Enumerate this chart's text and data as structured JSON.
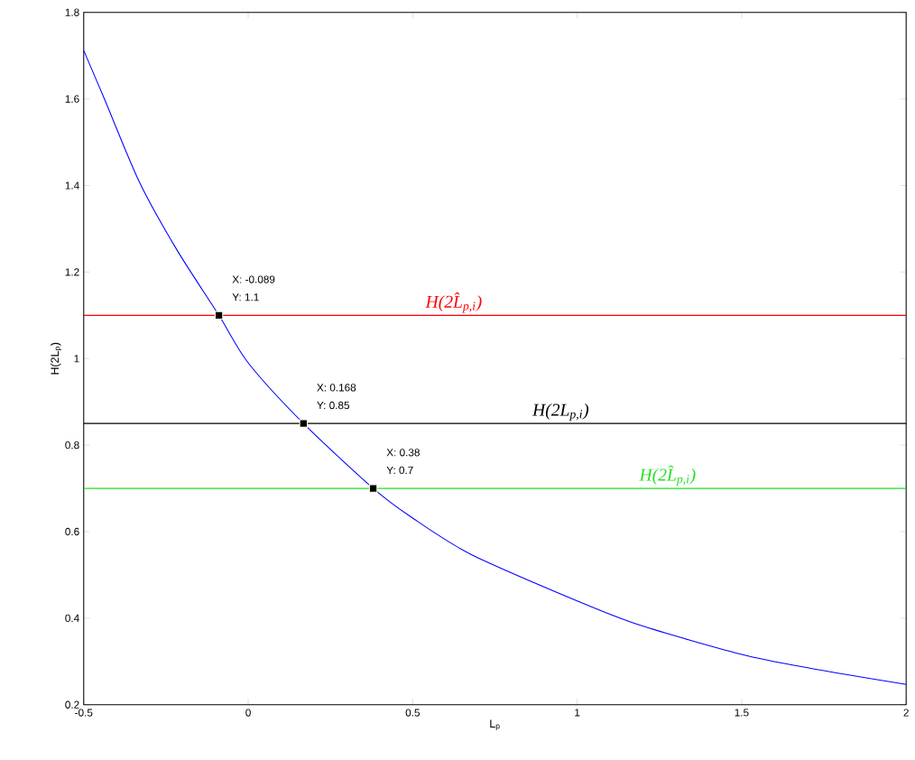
{
  "chart_data": {
    "type": "line",
    "xlabel": "L$_{p}$",
    "ylabel": "H(2L$_{p}$)",
    "xlim": [
      -0.5,
      2
    ],
    "ylim": [
      0.2,
      1.8
    ],
    "xticks": [
      -0.5,
      0,
      0.5,
      1,
      1.5,
      2
    ],
    "yticks": [
      0.2,
      0.4,
      0.6,
      0.8,
      1,
      1.2,
      1.4,
      1.6,
      1.8
    ],
    "grid": false,
    "series": [
      {
        "type": "line",
        "color": "#0000ff",
        "marker": "none",
        "line_style": "solid",
        "x": [
          -0.5,
          -0.436,
          -0.329,
          -0.215,
          -0.089,
          0,
          0.168,
          0.38,
          0.495,
          0.676,
          1.0,
          1.19,
          1.497,
          1.71,
          2.0
        ],
        "values": [
          1.712,
          1.598,
          1.405,
          1.249,
          1.1,
          0.99,
          0.85,
          0.7,
          0.634,
          0.548,
          0.44,
          0.384,
          0.317,
          0.284,
          0.247
        ]
      },
      {
        "type": "scatter",
        "color": "#000000",
        "marker": "square",
        "x": [
          -0.089,
          0.168,
          0.38
        ],
        "values": [
          1.1,
          0.85,
          0.7
        ]
      }
    ],
    "ref_lines": [
      {
        "axis": "y",
        "value": 1.1,
        "label": "H(2L̂$_{p,i}$)",
        "color": "#ff0000",
        "line_style": "solid"
      },
      {
        "axis": "y",
        "value": 0.85,
        "label": "H(2L$_{p,i}$)",
        "color": "#000000",
        "line_style": "solid"
      },
      {
        "axis": "y",
        "value": 0.7,
        "label": "H(2L̂$_{p,i}$)",
        "color": "#22e022",
        "line_style": "solid"
      }
    ],
    "annotations": [
      "X: -0.089",
      "Y: 1.1",
      "X: 0.168",
      "Y: 0.85",
      "X: 0.38",
      "Y: 0.7"
    ]
  }
}
